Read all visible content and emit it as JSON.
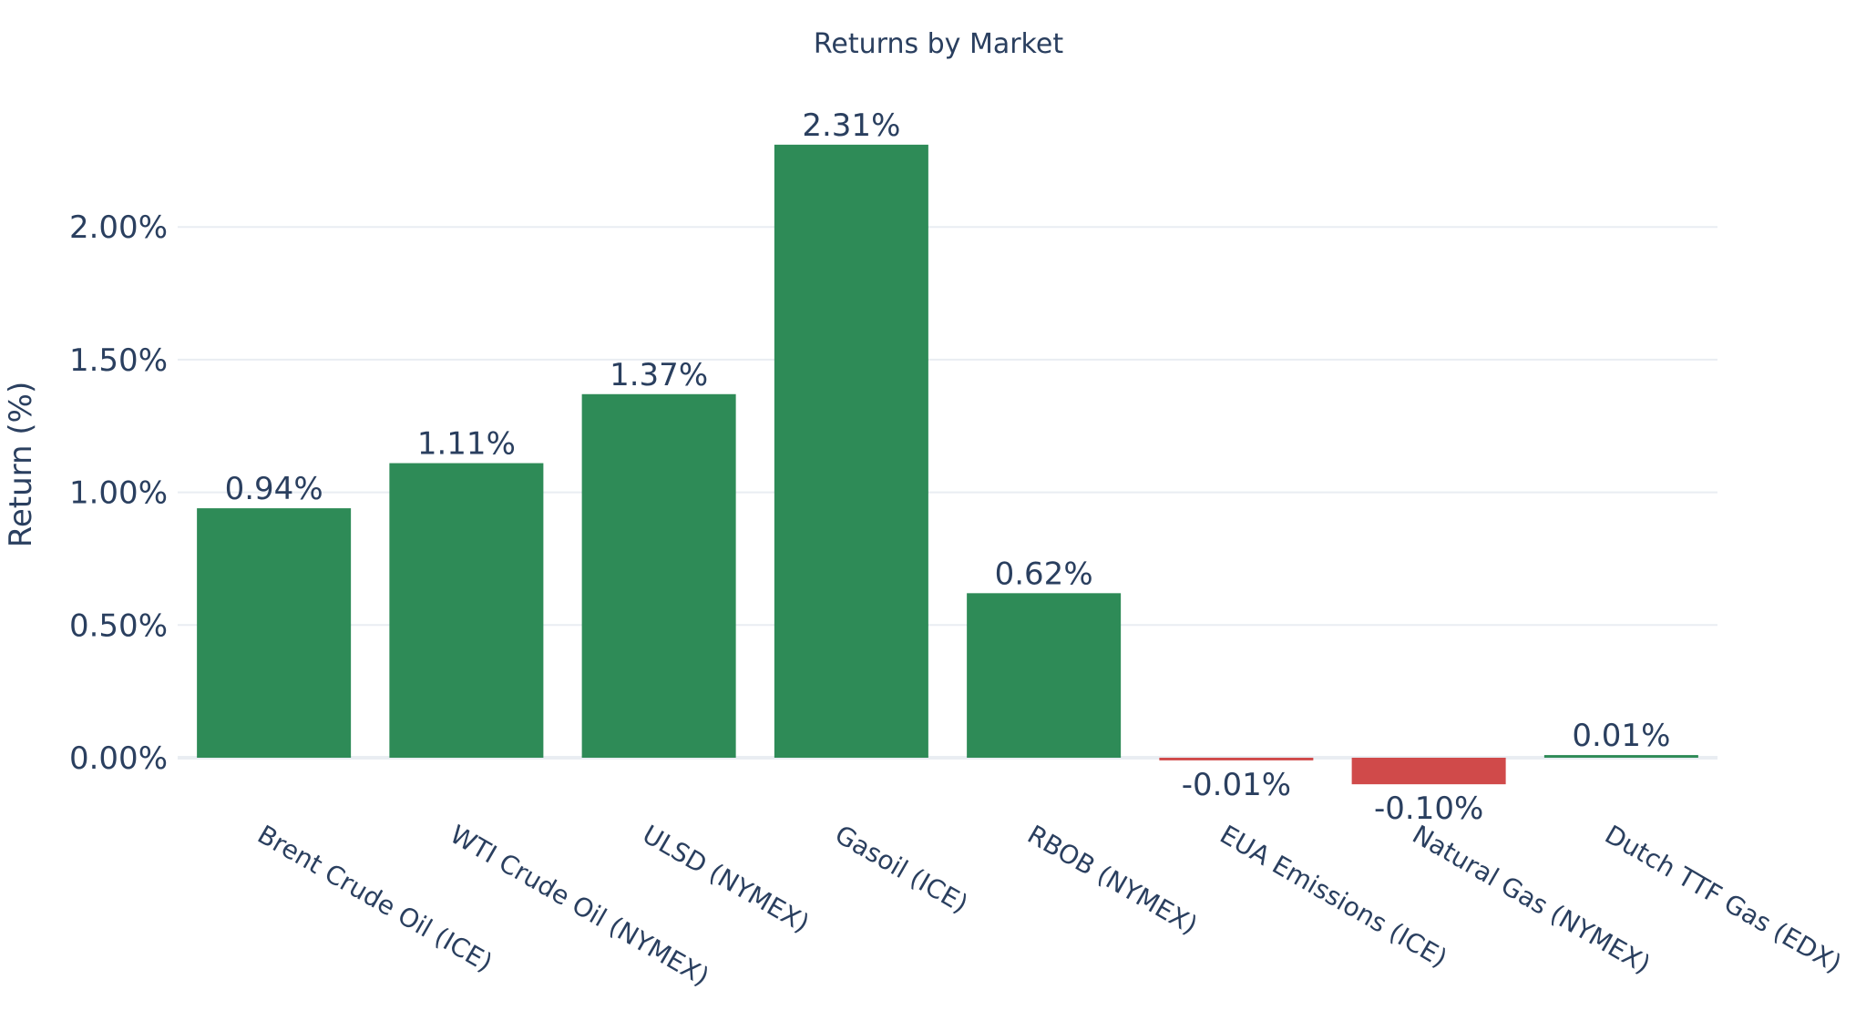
{
  "chart_data": {
    "type": "bar",
    "title": "Returns by Market",
    "xlabel": "",
    "ylabel": "Return (%)",
    "categories": [
      "Brent Crude Oil (ICE)",
      "WTI Crude Oil (NYMEX)",
      "ULSD (NYMEX)",
      "Gasoil (ICE)",
      "RBOB (NYMEX)",
      "EUA Emissions (ICE)",
      "Natural Gas (NYMEX)",
      "Dutch TTF Gas (EDX)"
    ],
    "values": [
      0.94,
      1.11,
      1.37,
      2.31,
      0.62,
      -0.01,
      -0.1,
      0.01
    ],
    "data_labels": [
      "0.94%",
      "1.11%",
      "1.37%",
      "2.31%",
      "0.62%",
      "-0.01%",
      "-0.10%",
      "0.01%"
    ],
    "yticks": [
      0,
      0.5,
      1.0,
      1.5,
      2.0
    ],
    "ytick_labels": [
      "0.00%",
      "0.50%",
      "1.00%",
      "1.50%",
      "2.00%"
    ],
    "ylim": [
      -0.14,
      2.55
    ],
    "grid": true,
    "legend": "none",
    "colors": {
      "positive": "#2e8b57",
      "negative": "#d04a4a"
    }
  }
}
